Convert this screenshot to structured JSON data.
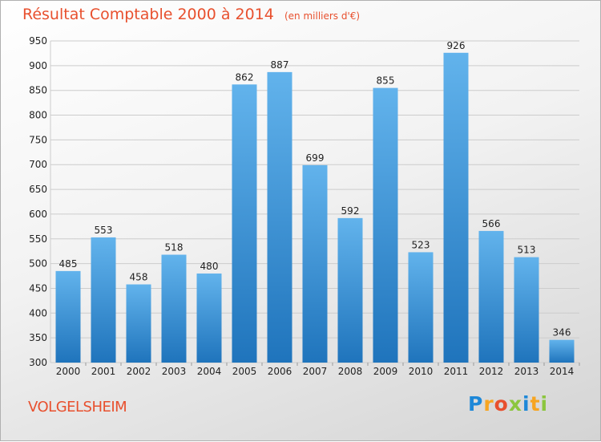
{
  "title": "Résultat Comptable 2000 à 2014",
  "unit_note": "(en milliers d'€)",
  "place": "VOLGELSHEIM",
  "logo": {
    "letters": [
      "P",
      "r",
      "o",
      "x",
      "i",
      "t",
      "i"
    ],
    "colors": [
      "#1e88d8",
      "#f7a521",
      "#e8502e",
      "#8cc63f",
      "#1e88d8",
      "#f7a521",
      "#8cc63f"
    ]
  },
  "colors": {
    "bar": "#3d95dd",
    "bar_light": "#62b3ec",
    "bar_dark": "#1f74bc",
    "grid": "#cccccc",
    "title": "#e8502e"
  },
  "chart_data": {
    "type": "bar",
    "categories": [
      "2000",
      "2001",
      "2002",
      "2003",
      "2004",
      "2005",
      "2006",
      "2007",
      "2008",
      "2009",
      "2010",
      "2011",
      "2012",
      "2013",
      "2014"
    ],
    "values": [
      485,
      553,
      458,
      518,
      480,
      862,
      887,
      699,
      592,
      855,
      523,
      926,
      566,
      513,
      346
    ],
    "ylim": [
      300,
      950
    ],
    "yticks": [
      300,
      350,
      400,
      450,
      500,
      550,
      600,
      650,
      700,
      750,
      800,
      850,
      900,
      950
    ],
    "grid": true,
    "title": "Résultat Comptable 2000 à 2014",
    "xlabel": "",
    "ylabel": ""
  }
}
